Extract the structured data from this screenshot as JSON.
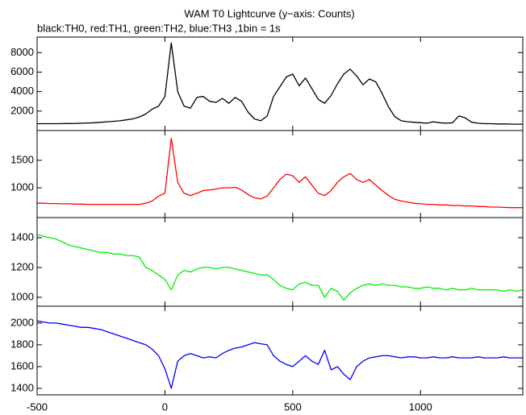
{
  "chart_data": [
    {
      "type": "line",
      "title": "WAM T0 Lightcurve (y−axis: Counts)",
      "subtitle": "black:TH0, red:TH1, green:TH2, blue:TH3 ,1bin = 1s",
      "x": [
        -500,
        -475,
        -450,
        -425,
        -400,
        -375,
        -350,
        -325,
        -300,
        -275,
        -250,
        -225,
        -200,
        -175,
        -150,
        -125,
        -100,
        -75,
        -50,
        -25,
        0,
        25,
        50,
        75,
        100,
        125,
        150,
        175,
        200,
        225,
        250,
        275,
        300,
        325,
        350,
        375,
        400,
        425,
        450,
        475,
        500,
        525,
        550,
        575,
        600,
        625,
        650,
        675,
        700,
        725,
        750,
        775,
        800,
        825,
        850,
        875,
        900,
        925,
        950,
        975,
        1000,
        1025,
        1050,
        1075,
        1100,
        1125,
        1150,
        1175,
        1200,
        1225,
        1250,
        1275,
        1300,
        1325,
        1350,
        1375,
        1400
      ],
      "series": [
        {
          "color": "#000000",
          "values": [
            700,
            700,
            700,
            700,
            710,
            720,
            730,
            750,
            780,
            800,
            850,
            900,
            950,
            1000,
            1100,
            1200,
            1400,
            1700,
            2200,
            2500,
            3500,
            9000,
            4000,
            2500,
            2300,
            3400,
            3500,
            3000,
            2900,
            3300,
            2800,
            3400,
            3000,
            1900,
            1200,
            1000,
            1500,
            3500,
            4500,
            5500,
            5800,
            4600,
            5400,
            4300,
            3200,
            2800,
            3600,
            4800,
            5800,
            6300,
            5600,
            4700,
            5300,
            5000,
            3800,
            2400,
            1400,
            1000,
            900,
            850,
            800,
            750,
            900,
            800,
            750,
            800,
            1500,
            1300,
            850,
            750,
            700,
            700,
            680,
            680,
            660,
            650,
            650
          ]
        }
      ],
      "xlim": [
        -500,
        1400
      ],
      "ylim": [
        0,
        9600
      ],
      "yticks": [
        2000,
        4000,
        6000,
        8000
      ]
    },
    {
      "type": "line",
      "x": [
        -500,
        -475,
        -450,
        -425,
        -400,
        -375,
        -350,
        -325,
        -300,
        -275,
        -250,
        -225,
        -200,
        -175,
        -150,
        -125,
        -100,
        -75,
        -50,
        -25,
        0,
        25,
        50,
        75,
        100,
        125,
        150,
        175,
        200,
        225,
        250,
        275,
        300,
        325,
        350,
        375,
        400,
        425,
        450,
        475,
        500,
        525,
        550,
        575,
        600,
        625,
        650,
        675,
        700,
        725,
        750,
        775,
        800,
        825,
        850,
        875,
        900,
        925,
        950,
        975,
        1000,
        1025,
        1050,
        1075,
        1100,
        1125,
        1150,
        1175,
        1200,
        1225,
        1250,
        1275,
        1300,
        1325,
        1350,
        1375,
        1400
      ],
      "series": [
        {
          "color": "#ff0000",
          "values": [
            720,
            720,
            715,
            715,
            710,
            710,
            705,
            705,
            700,
            700,
            700,
            700,
            700,
            700,
            700,
            700,
            700,
            720,
            760,
            850,
            900,
            1900,
            1100,
            900,
            860,
            900,
            950,
            960,
            980,
            1000,
            1000,
            1010,
            960,
            880,
            820,
            800,
            850,
            1000,
            1150,
            1250,
            1220,
            1100,
            1200,
            1050,
            900,
            860,
            950,
            1100,
            1200,
            1260,
            1150,
            1100,
            1150,
            1050,
            950,
            860,
            790,
            760,
            740,
            720,
            710,
            700,
            700,
            690,
            690,
            680,
            680,
            670,
            670,
            660,
            660,
            650,
            650,
            645,
            640,
            640,
            640
          ]
        }
      ],
      "xlim": [
        -500,
        1400
      ],
      "ylim": [
        460,
        2040
      ],
      "yticks": [
        1000,
        1500
      ]
    },
    {
      "type": "line",
      "x": [
        -500,
        -475,
        -450,
        -425,
        -400,
        -375,
        -350,
        -325,
        -300,
        -275,
        -250,
        -225,
        -200,
        -175,
        -150,
        -125,
        -100,
        -75,
        -50,
        -25,
        0,
        25,
        50,
        75,
        100,
        125,
        150,
        175,
        200,
        225,
        250,
        275,
        300,
        325,
        350,
        375,
        400,
        425,
        450,
        475,
        500,
        525,
        550,
        575,
        600,
        625,
        650,
        675,
        700,
        725,
        750,
        775,
        800,
        825,
        850,
        875,
        900,
        925,
        950,
        975,
        1000,
        1025,
        1050,
        1075,
        1100,
        1125,
        1150,
        1175,
        1200,
        1225,
        1250,
        1275,
        1300,
        1325,
        1350,
        1375,
        1400
      ],
      "series": [
        {
          "color": "#00ee00",
          "values": [
            1420,
            1410,
            1400,
            1390,
            1370,
            1350,
            1340,
            1330,
            1320,
            1310,
            1300,
            1300,
            1290,
            1290,
            1280,
            1280,
            1270,
            1200,
            1180,
            1150,
            1120,
            1050,
            1150,
            1180,
            1170,
            1190,
            1200,
            1200,
            1190,
            1200,
            1200,
            1190,
            1180,
            1170,
            1160,
            1150,
            1150,
            1120,
            1080,
            1060,
            1050,
            1090,
            1100,
            1080,
            1080,
            1000,
            1060,
            1040,
            980,
            1030,
            1060,
            1080,
            1090,
            1080,
            1090,
            1080,
            1080,
            1070,
            1070,
            1060,
            1060,
            1070,
            1060,
            1060,
            1050,
            1060,
            1050,
            1050,
            1060,
            1050,
            1050,
            1050,
            1050,
            1040,
            1050,
            1040,
            1050
          ]
        }
      ],
      "xlim": [
        -500,
        1400
      ],
      "ylim": [
        940,
        1535
      ],
      "yticks": [
        1000,
        1200,
        1400
      ]
    },
    {
      "type": "line",
      "x": [
        -500,
        -475,
        -450,
        -425,
        -400,
        -375,
        -350,
        -325,
        -300,
        -275,
        -250,
        -225,
        -200,
        -175,
        -150,
        -125,
        -100,
        -75,
        -50,
        -25,
        0,
        25,
        50,
        75,
        100,
        125,
        150,
        175,
        200,
        225,
        250,
        275,
        300,
        325,
        350,
        375,
        400,
        425,
        450,
        475,
        500,
        525,
        550,
        575,
        600,
        625,
        650,
        675,
        700,
        725,
        750,
        775,
        800,
        825,
        850,
        875,
        900,
        925,
        950,
        975,
        1000,
        1025,
        1050,
        1075,
        1100,
        1125,
        1150,
        1175,
        1200,
        1225,
        1250,
        1275,
        1300,
        1325,
        1350,
        1375,
        1400
      ],
      "series": [
        {
          "color": "#0000ff",
          "values": [
            2020,
            2010,
            2000,
            2000,
            1990,
            1980,
            1970,
            1960,
            1960,
            1950,
            1940,
            1920,
            1900,
            1880,
            1860,
            1840,
            1820,
            1800,
            1760,
            1700,
            1580,
            1400,
            1650,
            1700,
            1720,
            1700,
            1680,
            1690,
            1680,
            1720,
            1750,
            1770,
            1780,
            1800,
            1820,
            1810,
            1800,
            1700,
            1650,
            1620,
            1600,
            1650,
            1700,
            1650,
            1620,
            1750,
            1570,
            1600,
            1530,
            1480,
            1600,
            1650,
            1680,
            1690,
            1700,
            1700,
            1690,
            1680,
            1690,
            1690,
            1680,
            1680,
            1690,
            1680,
            1680,
            1690,
            1680,
            1680,
            1680,
            1690,
            1680,
            1680,
            1680,
            1690,
            1680,
            1680,
            1680
          ]
        }
      ],
      "xlim": [
        -500,
        1400
      ],
      "ylim": [
        1340,
        2155
      ],
      "yticks": [
        1400,
        1600,
        1800,
        2000
      ],
      "xticks": [
        -500,
        0,
        500,
        1000
      ]
    }
  ]
}
